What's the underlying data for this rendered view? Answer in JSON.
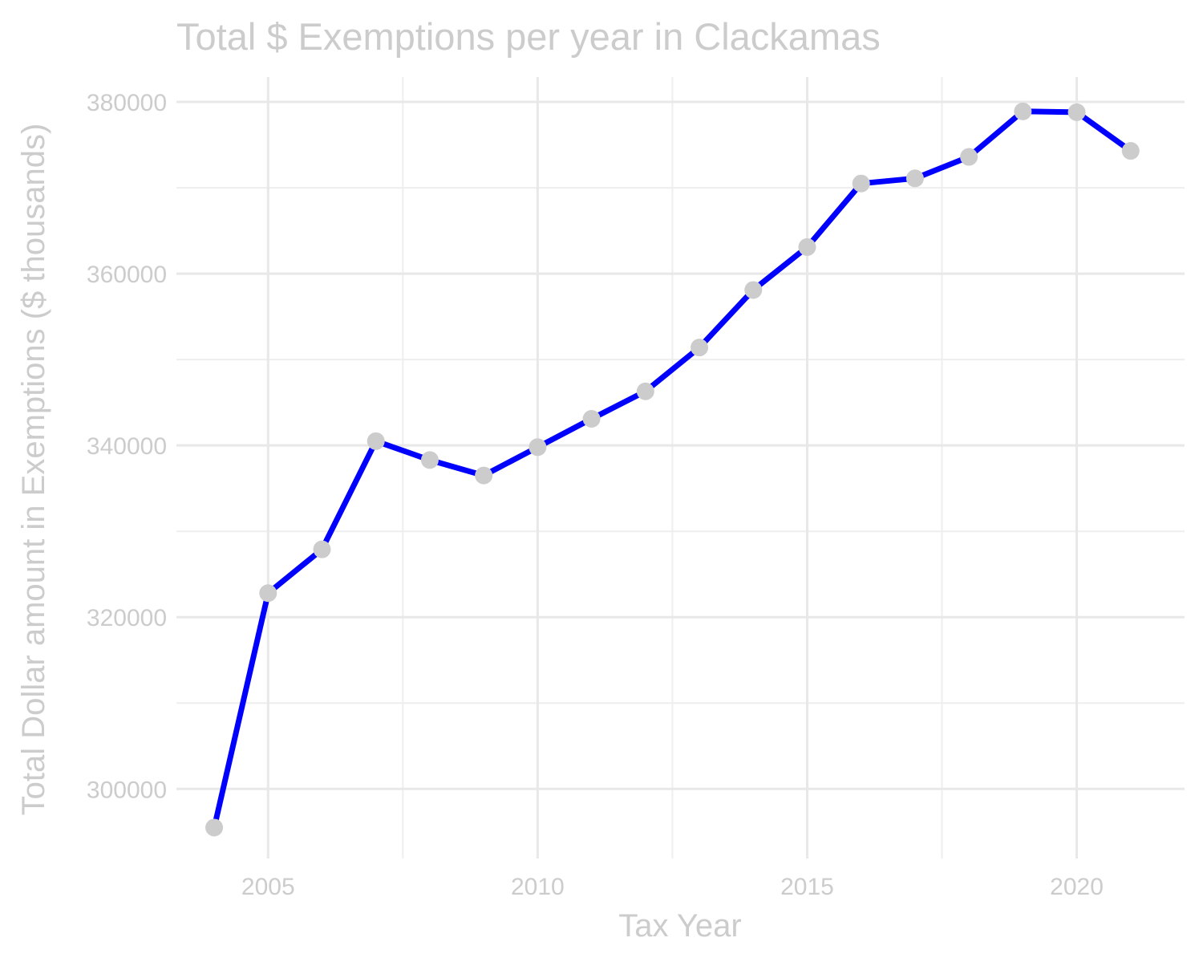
{
  "chart_data": {
    "type": "line",
    "title": "Total $ Exemptions per year in Clackamas",
    "xlabel": "Tax Year",
    "ylabel": "Total Dollar amount in Exemptions ($ thousands)",
    "x": [
      2004,
      2005,
      2006,
      2007,
      2008,
      2009,
      2010,
      2011,
      2012,
      2013,
      2014,
      2015,
      2016,
      2017,
      2018,
      2019,
      2020,
      2021
    ],
    "series": [
      {
        "values": [
          295500,
          322800,
          327900,
          340500,
          338300,
          336500,
          339800,
          343100,
          346300,
          351400,
          358100,
          363100,
          370500,
          371100,
          373600,
          378900,
          378800,
          374300
        ]
      }
    ],
    "xlim": [
      2003.3,
      2022.0
    ],
    "ylim": [
      291900,
      382900
    ],
    "x_ticks": [
      2005,
      2010,
      2015,
      2020
    ],
    "x_tick_labels": [
      "2005",
      "2010",
      "2015",
      "2020"
    ],
    "x_minor_ticks": [
      2007.5,
      2012.5,
      2017.5
    ],
    "y_ticks": [
      300000,
      320000,
      340000,
      360000,
      380000
    ],
    "y_tick_labels": [
      "300000",
      "320000",
      "340000",
      "360000",
      "380000"
    ],
    "y_minor_ticks": [
      310000,
      330000,
      350000,
      370000
    ],
    "grid": true,
    "legend": "none",
    "colors": {
      "line": "#0000ff",
      "points": "#cccccc",
      "text": "#cccccc",
      "grid": "#e8e8e8"
    }
  }
}
